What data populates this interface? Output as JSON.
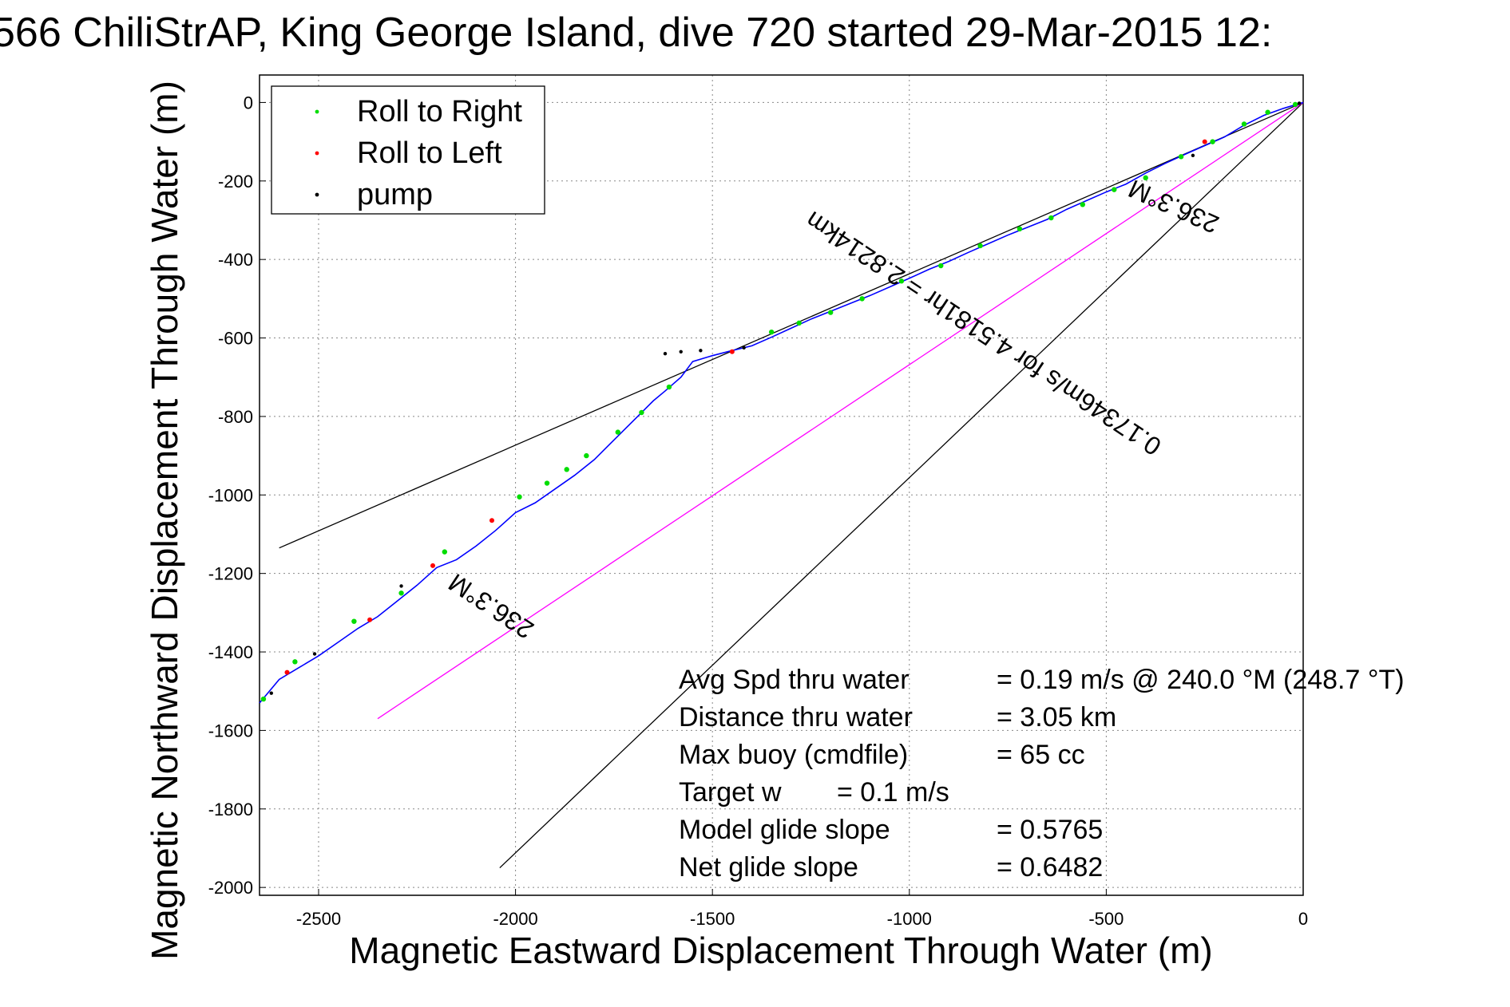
{
  "chart_data": {
    "type": "line",
    "title": "566 ChiliStrAP, King George Island, dive 720 started 29-Mar-2015 12:",
    "xlabel": "Magnetic Eastward Displacement Through Water (m)",
    "ylabel": "Magnetic Northward Displacement Through Water (m)",
    "xlim": [
      -2650,
      0
    ],
    "ylim": [
      -2020,
      70
    ],
    "xticks": [
      -2500,
      -2000,
      -1500,
      -1000,
      -500,
      0
    ],
    "yticks": [
      0,
      -200,
      -400,
      -600,
      -800,
      -1000,
      -1200,
      -1400,
      -1600,
      -1800,
      -2000
    ],
    "grid": true,
    "legend_position": "top-left",
    "legend": [
      {
        "name": "Roll to Right",
        "color": "#00dd00"
      },
      {
        "name": "Roll to Left",
        "color": "#ff0000"
      },
      {
        "name": "pump",
        "color": "#000000"
      }
    ],
    "series": [
      {
        "name": "track",
        "color": "#0000ff",
        "x": [
          0,
          -50,
          -100,
          -150,
          -200,
          -250,
          -300,
          -350,
          -400,
          -450,
          -500,
          -550,
          -600,
          -650,
          -700,
          -750,
          -800,
          -850,
          -900,
          -950,
          -1000,
          -1050,
          -1100,
          -1150,
          -1200,
          -1250,
          -1300,
          -1350,
          -1400,
          -1450,
          -1500,
          -1550,
          -1580,
          -1620,
          -1650,
          -1680,
          -1720,
          -1760,
          -1800,
          -1850,
          -1900,
          -1950,
          -2000,
          -2050,
          -2100,
          -2150,
          -2200,
          -2250,
          -2300,
          -2350,
          -2400,
          -2450,
          -2500,
          -2550,
          -2600,
          -2650
        ],
        "y": [
          0,
          -15,
          -33,
          -58,
          -88,
          -110,
          -132,
          -155,
          -180,
          -208,
          -228,
          -250,
          -272,
          -298,
          -318,
          -338,
          -360,
          -382,
          -405,
          -425,
          -448,
          -470,
          -492,
          -512,
          -532,
          -552,
          -575,
          -598,
          -620,
          -632,
          -645,
          -660,
          -700,
          -735,
          -760,
          -790,
          -830,
          -870,
          -910,
          -950,
          -985,
          -1020,
          -1045,
          -1090,
          -1130,
          -1165,
          -1185,
          -1230,
          -1270,
          -1310,
          -1340,
          -1375,
          -1410,
          -1440,
          -1470,
          -1530
        ]
      }
    ],
    "roll_right_points": {
      "x": [
        -20,
        -90,
        -150,
        -230,
        -310,
        -400,
        -480,
        -560,
        -640,
        -720,
        -820,
        -920,
        -1020,
        -1120,
        -1200,
        -1280,
        -1350,
        -1610,
        -1680,
        -1740,
        -1820,
        -1870,
        -1920,
        -1990,
        -2180,
        -2290,
        -2410,
        -2560,
        -2640
      ],
      "y": [
        -5,
        -25,
        -55,
        -100,
        -138,
        -192,
        -222,
        -260,
        -294,
        -322,
        -365,
        -416,
        -455,
        -500,
        -535,
        -562,
        -585,
        -725,
        -790,
        -840,
        -900,
        -935,
        -970,
        -1005,
        -1145,
        -1250,
        -1322,
        -1425,
        -1520
      ]
    },
    "roll_left_points": {
      "x": [
        -250,
        -1450,
        -2060,
        -2210,
        -2370,
        -2580
      ],
      "y": [
        -100,
        -635,
        -1065,
        -1180,
        -1318,
        -1452
      ]
    },
    "pump_points": {
      "x": [
        -10,
        -280,
        -1420,
        -1530,
        -1580,
        -1620,
        -2290,
        -2510,
        -2620
      ],
      "y": [
        -2,
        -135,
        -625,
        -632,
        -635,
        -640,
        -1232,
        -1405,
        -1505
      ]
    },
    "reference_lines": [
      {
        "color": "#000000",
        "x": [
          0,
          -2600
        ],
        "y": [
          0,
          -1135
        ]
      },
      {
        "color": "#000000",
        "x": [
          0,
          -2040
        ],
        "y": [
          0,
          -1950
        ]
      },
      {
        "color": "#ff00ff",
        "x": [
          0,
          -2350
        ],
        "y": [
          0,
          -1570
        ]
      }
    ],
    "annotations": [
      {
        "text": "236.3°M",
        "x": -320,
        "y": -245
      },
      {
        "text": "0.17346m/s for 4.5181hr = 2.8214km",
        "x": -800,
        "y": -570
      },
      {
        "text": "236.3°M",
        "x": -2050,
        "y": -1265
      }
    ],
    "stats": [
      {
        "label": "Avg Spd thru water",
        "value": "=  0.19 m/s @ 240.0 °M (248.7 °T)"
      },
      {
        "label": "Distance thru water",
        "value": "=  3.05 km"
      },
      {
        "label": "Max buoy (cmdfile)",
        "value": "= 65 cc"
      },
      {
        "label": "Target w",
        "value": "= 0.1 m/s"
      },
      {
        "label": "Model glide slope",
        "value": "= 0.5765"
      },
      {
        "label": "Net glide slope",
        "value": "= 0.6482"
      }
    ]
  }
}
